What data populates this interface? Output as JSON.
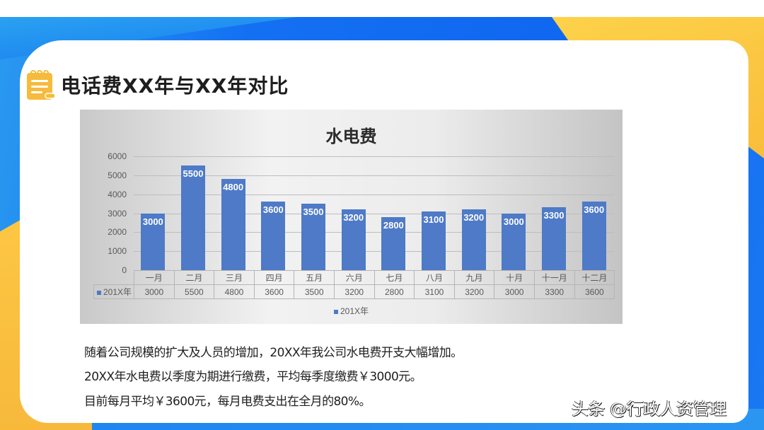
{
  "slide": {
    "title": "电话费XX年与XX年对比",
    "title_icon": "notepad-icon",
    "colors": {
      "primary_blue": "#1470f2",
      "accent_yellow": "#f9bd3a",
      "bar_blue": "#4e7ac7",
      "card": "#ffffff"
    }
  },
  "chart_data": {
    "type": "bar",
    "title": "水电费",
    "categories": [
      "一月",
      "二月",
      "三月",
      "四月",
      "五月",
      "六月",
      "七月",
      "八月",
      "九月",
      "十月",
      "十一月",
      "十二月"
    ],
    "series": [
      {
        "name": "201X年",
        "values": [
          3000,
          5500,
          4800,
          3600,
          3500,
          3200,
          2800,
          3100,
          3200,
          3000,
          3300,
          3600
        ]
      }
    ],
    "xlabel": "",
    "ylabel": "",
    "ylim": [
      0,
      6000
    ],
    "yticks": [
      "0",
      "1000",
      "2000",
      "3000",
      "4000",
      "5000",
      "6000"
    ],
    "grid": true,
    "data_labels": true,
    "data_table": true,
    "legend_position": "bottom"
  },
  "body_text": [
    "随着公司规模的扩大及人员的增加，20XX年我公司水电费开支大幅增加。",
    "20XX年水电费以季度为期进行缴费，平均每季度缴费￥3000元。",
    "目前每月平均￥3600元，每月电费支出在全月的80%。"
  ],
  "watermark": "头条 @行政人资管理"
}
